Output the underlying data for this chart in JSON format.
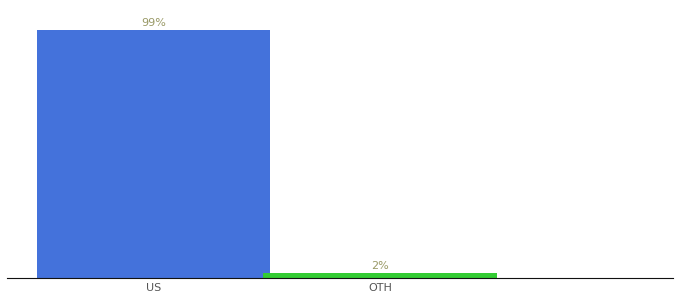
{
  "categories": [
    "US",
    "OTH"
  ],
  "values": [
    99,
    2
  ],
  "bar_colors": [
    "#4472db",
    "#33cc33"
  ],
  "label_colors": [
    "#999966",
    "#999966"
  ],
  "labels": [
    "99%",
    "2%"
  ],
  "ylim": [
    0,
    108
  ],
  "background_color": "#ffffff",
  "label_fontsize": 8,
  "tick_fontsize": 8,
  "tick_color": "#555555",
  "bar_width": 0.35,
  "x_positions": [
    0.22,
    0.56
  ],
  "xlim": [
    0,
    1.0
  ],
  "spine_color": "#111111",
  "spine_linewidth": 0.8
}
